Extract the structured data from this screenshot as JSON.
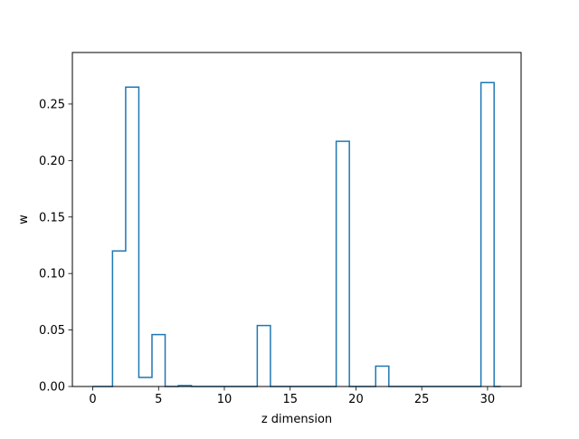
{
  "chart_data": {
    "type": "line",
    "drawstyle": "steps-mid",
    "title": "",
    "xlabel": "z dimension",
    "ylabel": "w",
    "xlim": [
      -1.55,
      32.55
    ],
    "ylim": [
      0,
      0.2956
    ],
    "xticks": [
      0,
      5,
      10,
      15,
      20,
      25,
      30
    ],
    "xtick_labels": [
      "0",
      "5",
      "10",
      "15",
      "20",
      "25",
      "30"
    ],
    "yticks": [
      0,
      0.05,
      0.1,
      0.15,
      0.2,
      0.25
    ],
    "ytick_labels": [
      "0.00",
      "0.05",
      "0.10",
      "0.15",
      "0.20",
      "0.25"
    ],
    "grid": false,
    "legend": "none",
    "colors": {
      "series": "#1f77b4",
      "axes": "#000000",
      "background": "#ffffff"
    },
    "series": [
      {
        "x": [
          0,
          1,
          2,
          3,
          4,
          5,
          6,
          7,
          8,
          9,
          10,
          11,
          12,
          13,
          14,
          15,
          16,
          17,
          18,
          19,
          20,
          21,
          22,
          23,
          24,
          25,
          26,
          27,
          28,
          29,
          30,
          31
        ],
        "values": [
          0,
          0,
          0.12,
          0.265,
          0.008,
          0.046,
          0,
          0.0008,
          0,
          0,
          0,
          0,
          0,
          0.054,
          0,
          0,
          0,
          0,
          0,
          0.217,
          0,
          0,
          0.018,
          0,
          0,
          0,
          0,
          0,
          0,
          0,
          0.269,
          0
        ]
      }
    ]
  }
}
